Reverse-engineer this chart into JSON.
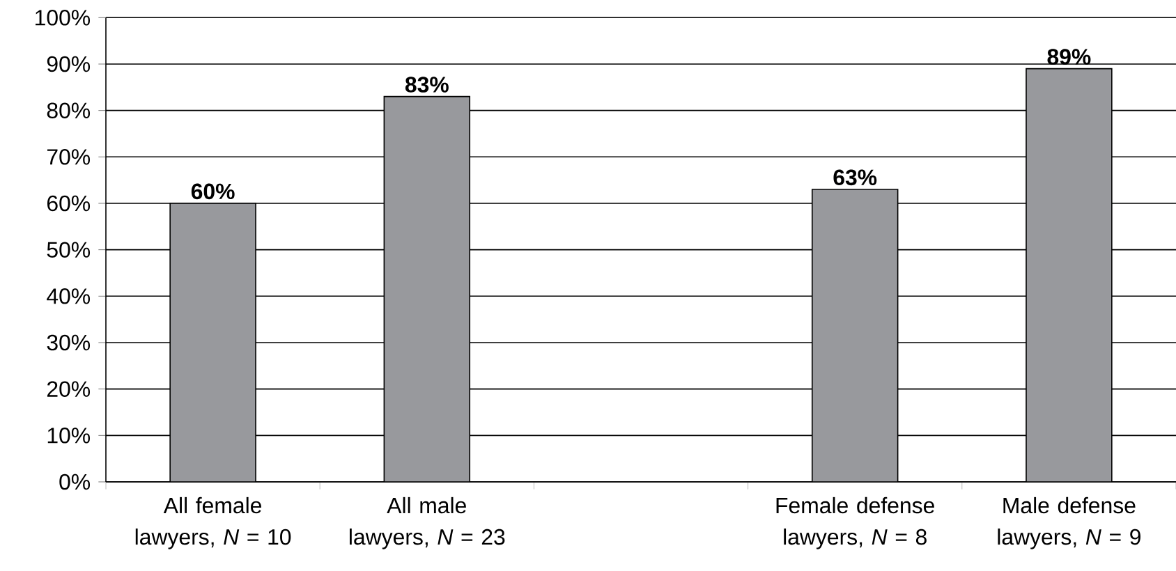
{
  "chart_data": {
    "type": "bar",
    "categories": [
      "All female lawyers, *N* = 10",
      "All male lawyers, *N* = 23",
      null,
      "Female defense lawyers, *N* = 8",
      "Male defense lawyers, *N* = 9"
    ],
    "values": [
      60,
      83,
      null,
      63,
      89
    ],
    "value_labels": [
      "60%",
      "83%",
      null,
      "63%",
      "89%"
    ],
    "color": "#98999d",
    "ylim": [
      0,
      100
    ],
    "yticks": [
      {
        "value": 0,
        "label": "0%"
      },
      {
        "value": 10,
        "label": "10%"
      },
      {
        "value": 20,
        "label": "20%"
      },
      {
        "value": 30,
        "label": "30%"
      },
      {
        "value": 40,
        "label": "40%"
      },
      {
        "value": 50,
        "label": "50%"
      },
      {
        "value": 60,
        "label": "60%"
      },
      {
        "value": 70,
        "label": "70%"
      },
      {
        "value": 80,
        "label": "80%"
      },
      {
        "value": 90,
        "label": "90%"
      },
      {
        "value": 100,
        "label": "100%"
      }
    ],
    "grid": "y"
  }
}
